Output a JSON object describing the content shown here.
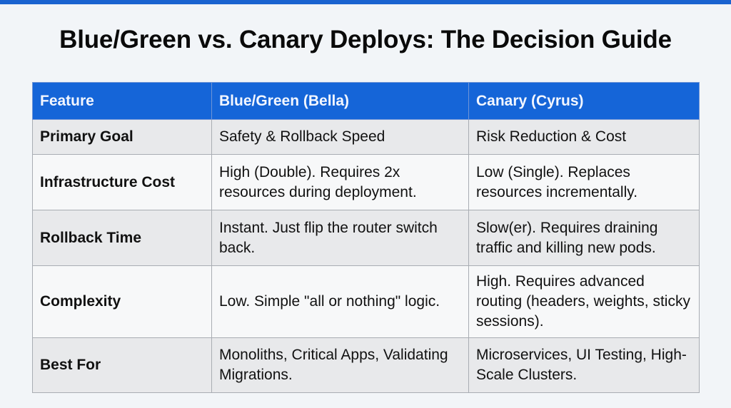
{
  "title": "Blue/Green vs. Canary Deploys: The Decision Guide",
  "colors": {
    "accent": "#1565d8",
    "top_bar": "#1a63d0"
  },
  "table": {
    "headers": [
      "Feature",
      "Blue/Green (Bella)",
      "Canary (Cyrus)"
    ],
    "rows": [
      {
        "feature": "Primary Goal",
        "blue_green": "Safety & Rollback Speed",
        "canary": "Risk Reduction & Cost"
      },
      {
        "feature": "Infrastructure Cost",
        "blue_green": "High (Double). Requires 2x resources during deployment.",
        "canary": "Low (Single). Replaces resources incrementally."
      },
      {
        "feature": "Rollback Time",
        "blue_green": "Instant. Just flip the router switch back.",
        "canary": "Slow(er). Requires draining traffic and killing new pods."
      },
      {
        "feature": "Complexity",
        "blue_green": "Low. Simple \"all or nothing\" logic.",
        "canary": "High. Requires advanced routing (headers, weights, sticky sessions)."
      },
      {
        "feature": "Best For",
        "blue_green": "Monoliths, Critical Apps, Validating Migrations.",
        "canary": "Microservices, UI Testing, High-Scale Clusters."
      }
    ]
  }
}
